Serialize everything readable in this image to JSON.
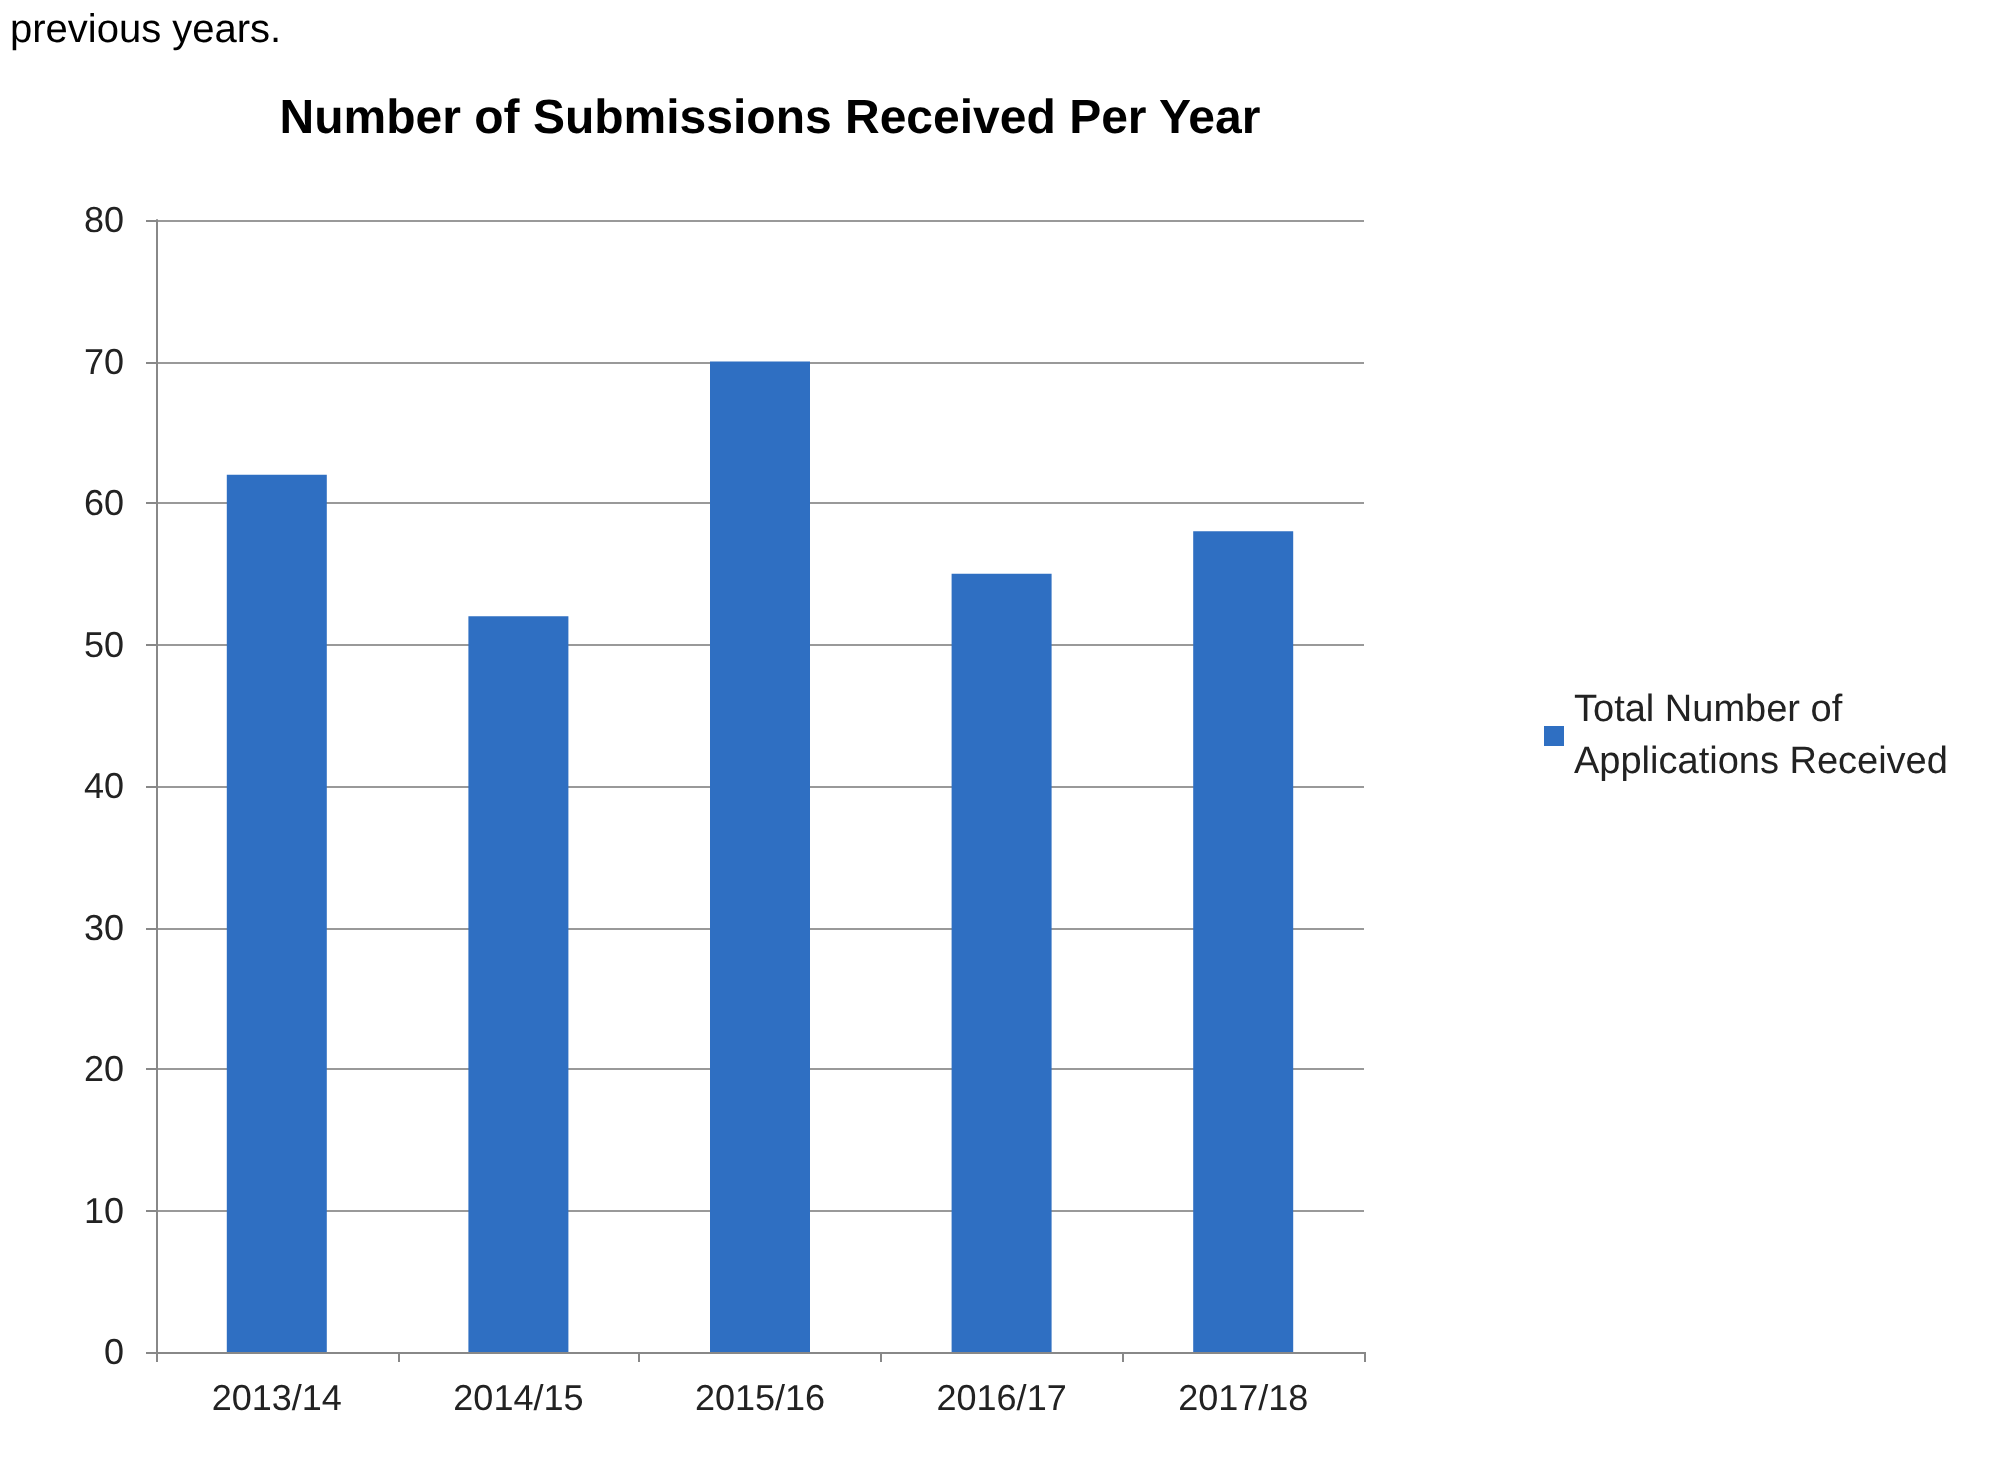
{
  "chart_data": {
    "type": "bar",
    "title": "Number of Submissions Received Per Year",
    "annotations": [
      "previous years."
    ],
    "categories": [
      "2013/14",
      "2014/15",
      "2015/16",
      "2016/17",
      "2017/18"
    ],
    "series": [
      {
        "name": "Total Number of Applications Received",
        "color": "#2f6fc2",
        "values": [
          62,
          52,
          70,
          55,
          58
        ]
      }
    ],
    "ylim": [
      0,
      80
    ],
    "yticks": [
      0,
      10,
      20,
      30,
      40,
      50,
      60,
      70,
      80
    ],
    "grid": "y",
    "legend": "right"
  }
}
